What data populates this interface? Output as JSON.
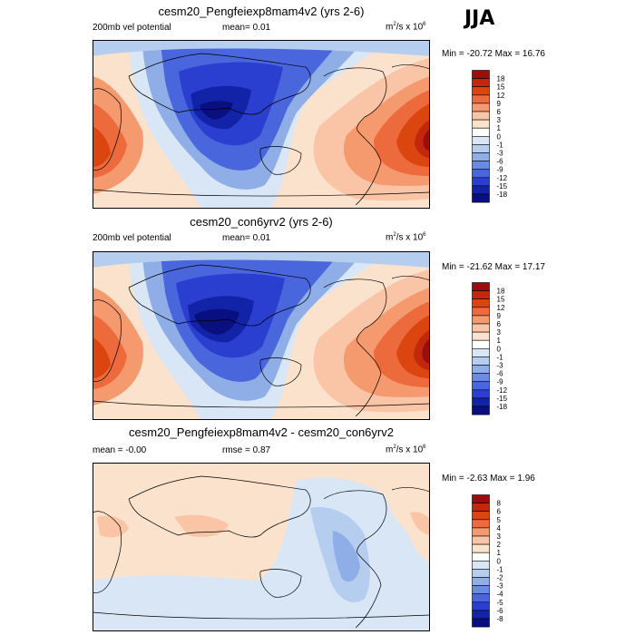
{
  "season": "JJA",
  "panels": [
    {
      "title": "cesm20_Pengfeiexp8mam4v2 (yrs 2-6)",
      "left_label": "200mb vel potential",
      "center_label": "mean=  0.01",
      "units_base": "m",
      "units_rest": "/s x 10",
      "units_exp": "6",
      "minmax": "Min = -20.72 Max =  16.76",
      "levels": [
        "18",
        "15",
        "12",
        "9",
        "6",
        "3",
        "1",
        "0",
        "-1",
        "-3",
        "-6",
        "-9",
        "-12",
        "-15",
        "-18"
      ],
      "colors": [
        "#9c0e0e",
        "#c2290c",
        "#db4510",
        "#ec6a3c",
        "#f5996f",
        "#fac5a6",
        "#fbe2cc",
        "#ffffff",
        "#d8e6f6",
        "#b5cdee",
        "#8fade6",
        "#6a8be2",
        "#4a66dc",
        "#2a3fd0",
        "#1223a8",
        "#0a0f80"
      ]
    },
    {
      "title": "cesm20_con6yrv2 (yrs 2-6)",
      "left_label": "200mb vel potential",
      "center_label": "mean=  0.01",
      "units_base": "m",
      "units_rest": "/s x 10",
      "units_exp": "6",
      "minmax": "Min = -21.62 Max =  17.17",
      "levels": [
        "18",
        "15",
        "12",
        "9",
        "6",
        "3",
        "1",
        "0",
        "-1",
        "-3",
        "-6",
        "-9",
        "-12",
        "-15",
        "-18"
      ],
      "colors": [
        "#9c0e0e",
        "#c2290c",
        "#db4510",
        "#ec6a3c",
        "#f5996f",
        "#fac5a6",
        "#fbe2cc",
        "#ffffff",
        "#d8e6f6",
        "#b5cdee",
        "#8fade6",
        "#6a8be2",
        "#4a66dc",
        "#2a3fd0",
        "#1223a8",
        "#0a0f80"
      ]
    },
    {
      "title": "cesm20_Pengfeiexp8mam4v2 - cesm20_con6yrv2",
      "left_label": "mean =  -0.00",
      "center_label": "rmse =   0.87",
      "units_base": "m",
      "units_rest": "/s x 10",
      "units_exp": "6",
      "minmax": "Min =  -2.63 Max =   1.96",
      "levels": [
        "8",
        "6",
        "5",
        "4",
        "3",
        "2",
        "1",
        "0",
        "-1",
        "-2",
        "-3",
        "-4",
        "-5",
        "-6",
        "-8"
      ],
      "colors": [
        "#9c0e0e",
        "#c2290c",
        "#db4510",
        "#ec6a3c",
        "#f5996f",
        "#fac5a6",
        "#fbe2cc",
        "#ffffff",
        "#d8e6f6",
        "#b5cdee",
        "#8fade6",
        "#6a8be2",
        "#4a66dc",
        "#2a3fd0",
        "#1223a8",
        "#0a0f80"
      ]
    }
  ]
}
